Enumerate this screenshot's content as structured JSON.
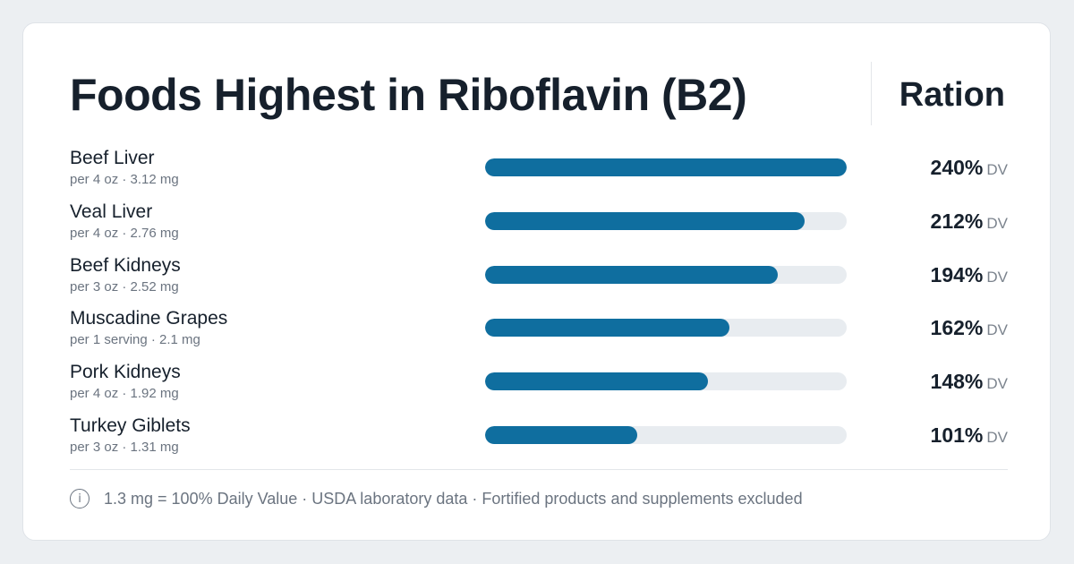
{
  "page": {
    "title": "Foods Highest in Riboflavin (B2)",
    "brand": "Ration",
    "footer_note": "1.3 mg = 100% Daily Value · USDA laboratory data · Fortified products and supplements excluded",
    "info_icon": "info-icon",
    "colors": {
      "bar": "#0f6e9f",
      "track": "#e8ecf0",
      "text": "#16202c",
      "muted": "#6b7480"
    }
  },
  "rows": [
    {
      "name": "Beef Liver",
      "serving": "per 4 oz · 3.12 mg",
      "pct": "240%",
      "unit": "DV"
    },
    {
      "name": "Veal Liver",
      "serving": "per 4 oz · 2.76 mg",
      "pct": "212%",
      "unit": "DV"
    },
    {
      "name": "Beef Kidneys",
      "serving": "per 3 oz · 2.52 mg",
      "pct": "194%",
      "unit": "DV"
    },
    {
      "name": "Muscadine Grapes",
      "serving": "per 1 serving · 2.1 mg",
      "pct": "162%",
      "unit": "DV"
    },
    {
      "name": "Pork Kidneys",
      "serving": "per 4 oz · 1.92 mg",
      "pct": "148%",
      "unit": "DV"
    },
    {
      "name": "Turkey Giblets",
      "serving": "per 3 oz · 1.31 mg",
      "pct": "101%",
      "unit": "DV"
    }
  ],
  "chart_data": {
    "type": "bar",
    "orientation": "horizontal",
    "title": "Foods Highest in Riboflavin (B2)",
    "categories": [
      "Beef Liver",
      "Veal Liver",
      "Beef Kidneys",
      "Muscadine Grapes",
      "Pork Kidneys",
      "Turkey Giblets"
    ],
    "values": [
      240,
      212,
      194,
      162,
      148,
      101
    ],
    "xlim": [
      0,
      240
    ],
    "unit": "% DV",
    "grid": false,
    "legend": "none"
  }
}
